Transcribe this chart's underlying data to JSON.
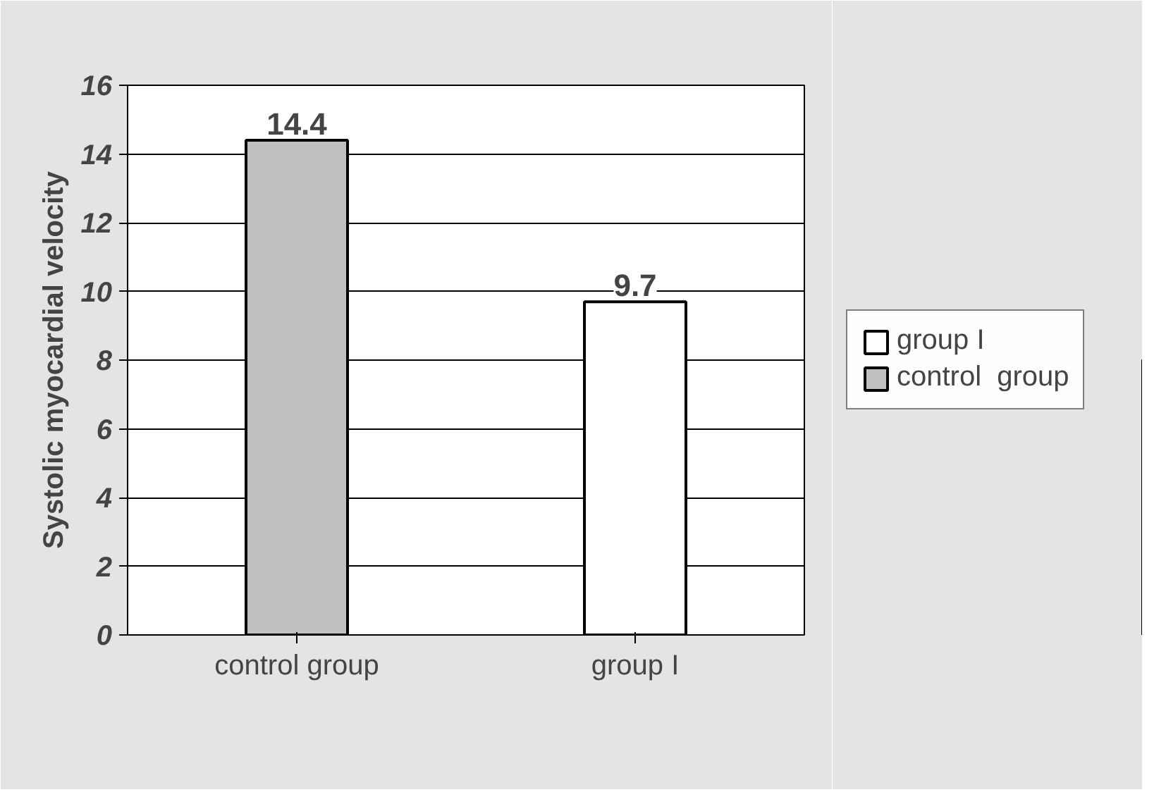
{
  "chart_data": {
    "type": "bar",
    "ylabel": "Systolic myocardial velocity",
    "categories": [
      "control group",
      "group I"
    ],
    "series": [
      {
        "name": "group I",
        "color": "#ffffff",
        "values": [
          null,
          9.7
        ]
      },
      {
        "name": "control  group",
        "color": "#c0c0c0",
        "values": [
          14.4,
          null
        ]
      }
    ],
    "ylim": [
      0,
      16
    ],
    "yticks": [
      0,
      2,
      4,
      6,
      8,
      10,
      12,
      14,
      16
    ],
    "grid": "y",
    "legend": "right",
    "data_labels": true
  }
}
